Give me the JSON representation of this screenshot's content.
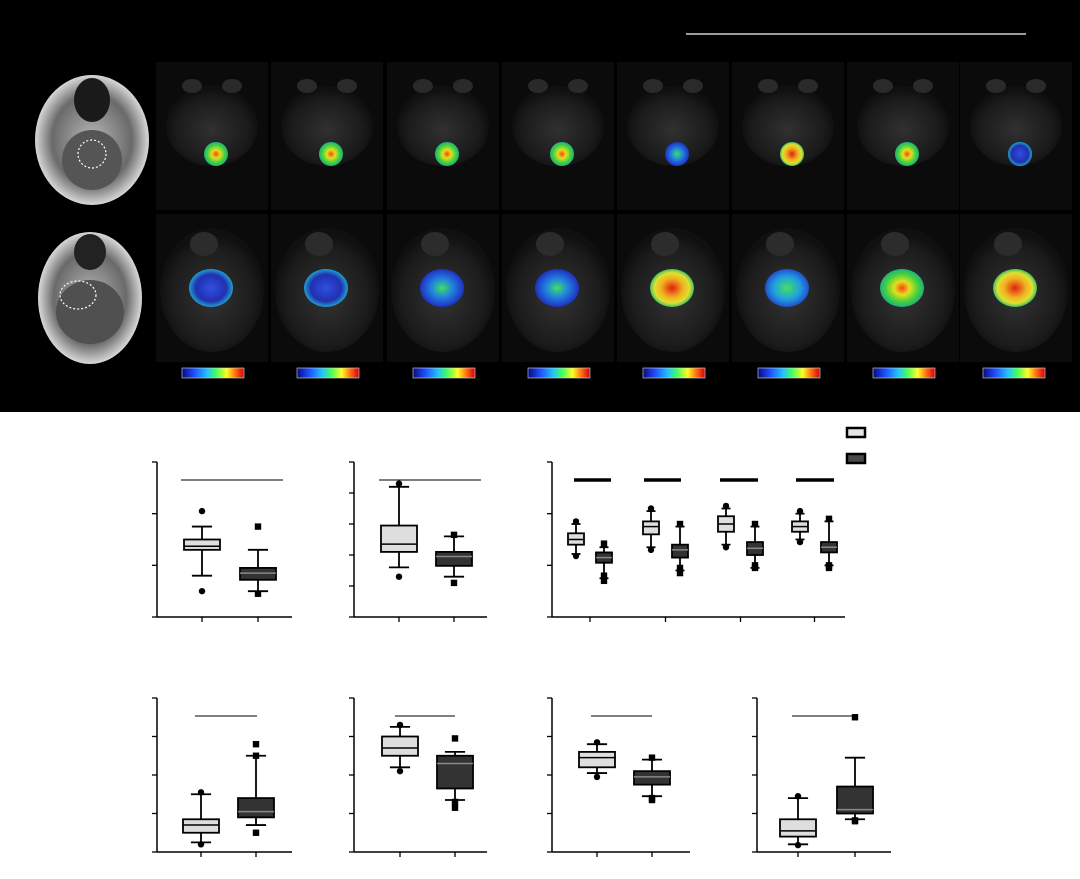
{
  "figure": {
    "top_panel": {
      "background": "#000000",
      "rows": [
        {
          "tumor_shape": "small-round",
          "maps": [
            "green",
            "green",
            "green",
            "green",
            "blue-green",
            "red-yellow",
            "green",
            "blue"
          ]
        },
        {
          "tumor_shape": "large-irregular",
          "maps": [
            "blue",
            "blue",
            "blue-green",
            "blue-green",
            "red-yellow",
            "green-blue",
            "green",
            "red-yellow"
          ]
        }
      ],
      "colorbar_count": 8
    },
    "legend": {
      "entries": [
        {
          "fill": "#e6e6e6"
        },
        {
          "fill": "#4a4a4a"
        }
      ]
    }
  },
  "chart_data": [
    {
      "type": "box",
      "group_fills": [
        "#dedede",
        "#333333"
      ],
      "ylim": [
        0,
        3
      ],
      "groups": [
        {
          "q1": 1.3,
          "median": 1.37,
          "q3": 1.5,
          "whisker_low": 0.8,
          "whisker_high": 1.75,
          "outliers": [
            0.5,
            2.05
          ]
        },
        {
          "q1": 0.72,
          "median": 0.85,
          "q3": 0.95,
          "whisker_low": 0.5,
          "whisker_high": 1.3,
          "outliers": [
            0.45,
            1.75
          ]
        }
      ]
    },
    {
      "type": "box",
      "group_fills": [
        "#dedede",
        "#333333"
      ],
      "ylim": [
        0,
        5
      ],
      "groups": [
        {
          "q1": 2.1,
          "median": 2.35,
          "q3": 2.95,
          "whisker_low": 1.6,
          "whisker_high": 4.2,
          "outliers": [
            1.3,
            4.3
          ]
        },
        {
          "q1": 1.65,
          "median": 1.95,
          "q3": 2.1,
          "whisker_low": 1.3,
          "whisker_high": 2.6,
          "outliers": [
            1.1,
            2.65
          ]
        }
      ]
    },
    {
      "type": "box",
      "group_fills": [
        "#dedede",
        "#333333"
      ],
      "ylim": [
        0,
        3
      ],
      "pairs": [
        {
          "light": {
            "q1": 1.4,
            "median": 1.5,
            "q3": 1.62,
            "whisker_low": 1.22,
            "whisker_high": 1.8,
            "outliers": [
              1.18,
              1.85
            ]
          },
          "dark": {
            "q1": 1.05,
            "median": 1.15,
            "q3": 1.25,
            "whisker_low": 0.75,
            "whisker_high": 1.35,
            "outliers": [
              0.7,
              0.8,
              1.42
            ]
          }
        },
        {
          "light": {
            "q1": 1.6,
            "median": 1.75,
            "q3": 1.85,
            "whisker_low": 1.35,
            "whisker_high": 2.05,
            "outliers": [
              1.3,
              2.1
            ]
          },
          "dark": {
            "q1": 1.15,
            "median": 1.3,
            "q3": 1.4,
            "whisker_low": 0.9,
            "whisker_high": 1.75,
            "outliers": [
              0.85,
              0.95,
              1.8
            ]
          }
        },
        {
          "light": {
            "q1": 1.65,
            "median": 1.8,
            "q3": 1.95,
            "whisker_low": 1.4,
            "whisker_high": 2.1,
            "outliers": [
              1.35,
              2.15
            ]
          },
          "dark": {
            "q1": 1.2,
            "median": 1.33,
            "q3": 1.45,
            "whisker_low": 0.95,
            "whisker_high": 1.75,
            "outliers": [
              0.95,
              1.0,
              1.8
            ]
          }
        },
        {
          "light": {
            "q1": 1.65,
            "median": 1.75,
            "q3": 1.85,
            "whisker_low": 1.5,
            "whisker_high": 2.0,
            "outliers": [
              1.45,
              2.05
            ]
          },
          "dark": {
            "q1": 1.25,
            "median": 1.35,
            "q3": 1.45,
            "whisker_low": 1.0,
            "whisker_high": 1.85,
            "outliers": [
              0.95,
              1.0,
              1.9
            ]
          }
        }
      ]
    },
    {
      "type": "box",
      "group_fills": [
        "#dedede",
        "#333333"
      ],
      "ylim": [
        0,
        4
      ],
      "groups": [
        {
          "q1": 0.5,
          "median": 0.7,
          "q3": 0.85,
          "whisker_low": 0.25,
          "whisker_high": 1.5,
          "outliers": [
            0.2,
            1.55
          ]
        },
        {
          "q1": 0.9,
          "median": 1.05,
          "q3": 1.4,
          "whisker_low": 0.7,
          "whisker_high": 2.5,
          "outliers": [
            0.5,
            2.5,
            2.8
          ]
        }
      ]
    },
    {
      "type": "box",
      "group_fills": [
        "#dedede",
        "#333333"
      ],
      "ylim": [
        0,
        4
      ],
      "groups": [
        {
          "q1": 2.5,
          "median": 2.7,
          "q3": 3.0,
          "whisker_low": 2.2,
          "whisker_high": 3.25,
          "outliers": [
            2.1,
            3.3
          ]
        },
        {
          "q1": 1.65,
          "median": 2.3,
          "q3": 2.5,
          "whisker_low": 1.35,
          "whisker_high": 2.6,
          "outliers": [
            1.15,
            1.3,
            2.95
          ]
        }
      ]
    },
    {
      "type": "box",
      "group_fills": [
        "#dedede",
        "#333333"
      ],
      "ylim": [
        0,
        4
      ],
      "groups": [
        {
          "q1": 2.2,
          "median": 2.45,
          "q3": 2.6,
          "whisker_low": 2.05,
          "whisker_high": 2.8,
          "outliers": [
            1.95,
            2.85
          ]
        },
        {
          "q1": 1.75,
          "median": 1.95,
          "q3": 2.1,
          "whisker_low": 1.45,
          "whisker_high": 2.4,
          "outliers": [
            1.35,
            1.4,
            2.45
          ]
        }
      ]
    },
    {
      "type": "box",
      "group_fills": [
        "#dedede",
        "#333333"
      ],
      "ylim": [
        0,
        4
      ],
      "groups": [
        {
          "q1": 0.4,
          "median": 0.55,
          "q3": 0.85,
          "whisker_low": 0.2,
          "whisker_high": 1.4,
          "outliers": [
            0.18,
            1.45
          ]
        },
        {
          "q1": 1.0,
          "median": 1.1,
          "q3": 1.7,
          "whisker_low": 0.85,
          "whisker_high": 2.45,
          "outliers": [
            0.8,
            0.82,
            3.5
          ]
        }
      ]
    }
  ]
}
